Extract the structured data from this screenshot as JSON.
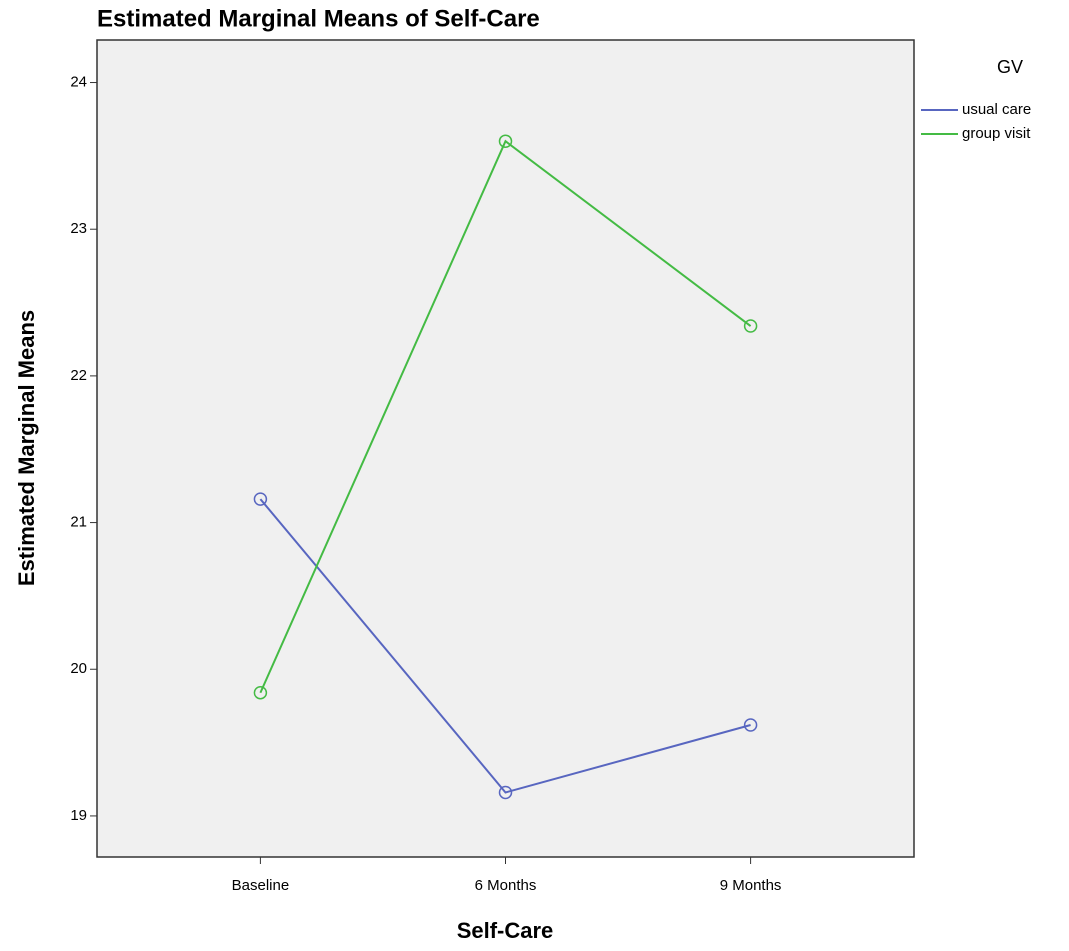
{
  "chart_data": {
    "type": "line",
    "title": "Estimated Marginal Means of Self-Care",
    "x_label": "Self-Care",
    "y_label": "Estimated Marginal Means",
    "legend_title": "GV",
    "categories": [
      "Baseline",
      "6 Months",
      "9 Months"
    ],
    "series": [
      {
        "name": "usual care",
        "color": "#5866c0",
        "values": [
          21.16,
          19.16,
          19.62
        ]
      },
      {
        "name": "group visit",
        "color": "#44bb44",
        "values": [
          19.84,
          23.6,
          22.34
        ]
      }
    ],
    "ylim": [
      18.72,
      24.29
    ],
    "yticks": [
      19,
      20,
      21,
      22,
      23,
      24
    ],
    "markers": true
  }
}
